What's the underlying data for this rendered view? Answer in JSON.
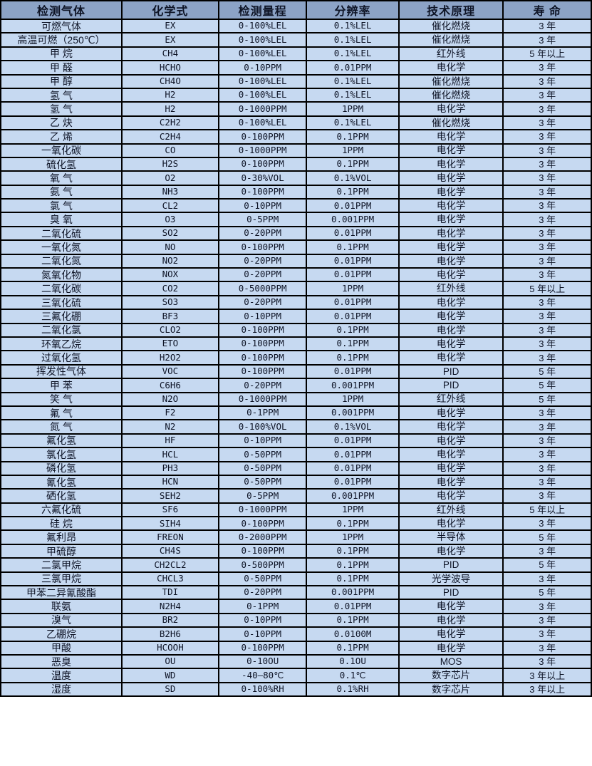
{
  "colors": {
    "header_bg": "#8CA3C6",
    "row_bg": "#C6D9F1",
    "border": "#000000",
    "text": "#0E1426"
  },
  "table": {
    "columns": [
      "检测气体",
      "化学式",
      "检测量程",
      "分辨率",
      "技术原理",
      "寿 命"
    ],
    "column_keys": [
      "gas",
      "formula",
      "range",
      "resolution",
      "principle",
      "lifespan"
    ],
    "rows": [
      [
        "可燃气体",
        "EX",
        "0-100%LEL",
        "0.1%LEL",
        "催化燃烧",
        "3 年"
      ],
      [
        "高温可燃（250℃）",
        "EX",
        "0-100%LEL",
        "0.1%LEL",
        "催化燃烧",
        "3 年"
      ],
      [
        "甲 烷",
        "CH4",
        "0-100%LEL",
        "0.1%LEL",
        "红外线",
        "5 年以上"
      ],
      [
        "甲 醛",
        "HCHO",
        "0-10PPM",
        "0.01PPM",
        "电化学",
        "3 年"
      ],
      [
        "甲 醇",
        "CH4O",
        "0-100%LEL",
        "0.1%LEL",
        "催化燃烧",
        "3 年"
      ],
      [
        "氢 气",
        "H2",
        "0-100%LEL",
        "0.1%LEL",
        "催化燃烧",
        "3 年"
      ],
      [
        "氢 气",
        "H2",
        "0-1000PPM",
        "1PPM",
        "电化学",
        "3 年"
      ],
      [
        "乙 炔",
        "C2H2",
        "0-100%LEL",
        "0.1%LEL",
        "催化燃烧",
        "3 年"
      ],
      [
        "乙 烯",
        "C2H4",
        "0-100PPM",
        "0.1PPM",
        "电化学",
        "3 年"
      ],
      [
        "一氧化碳",
        "CO",
        "0-1000PPM",
        "1PPM",
        "电化学",
        "3 年"
      ],
      [
        "硫化氢",
        "H2S",
        "0-100PPM",
        "0.1PPM",
        "电化学",
        "3 年"
      ],
      [
        "氧 气",
        "O2",
        "0-30%VOL",
        "0.1%VOL",
        "电化学",
        "3 年"
      ],
      [
        "氨 气",
        "NH3",
        "0-100PPM",
        "0.1PPM",
        "电化学",
        "3 年"
      ],
      [
        "氯 气",
        "CL2",
        "0-10PPM",
        "0.01PPM",
        "电化学",
        "3 年"
      ],
      [
        "臭 氧",
        "O3",
        "0-5PPM",
        "0.001PPM",
        "电化学",
        "3 年"
      ],
      [
        "二氧化硫",
        "SO2",
        "0-20PPM",
        "0.01PPM",
        "电化学",
        "3 年"
      ],
      [
        "一氧化氮",
        "NO",
        "0-100PPM",
        "0.1PPM",
        "电化学",
        "3 年"
      ],
      [
        "二氧化氮",
        "NO2",
        "0-20PPM",
        "0.01PPM",
        "电化学",
        "3 年"
      ],
      [
        "氮氧化物",
        "NOX",
        "0-20PPM",
        "0.01PPM",
        "电化学",
        "3 年"
      ],
      [
        "二氧化碳",
        "CO2",
        "0-5000PPM",
        "1PPM",
        "红外线",
        "5 年以上"
      ],
      [
        "三氧化硫",
        "SO3",
        "0-20PPM",
        "0.01PPM",
        "电化学",
        "3 年"
      ],
      [
        "三氟化硼",
        "BF3",
        "0-10PPM",
        "0.01PPM",
        "电化学",
        "3 年"
      ],
      [
        "二氧化氯",
        "CLO2",
        "0-100PPM",
        "0.1PPM",
        "电化学",
        "3 年"
      ],
      [
        "环氧乙烷",
        "ETO",
        "0-100PPM",
        "0.1PPM",
        "电化学",
        "3 年"
      ],
      [
        "过氧化氢",
        "H2O2",
        "0-100PPM",
        "0.1PPM",
        "电化学",
        "3 年"
      ],
      [
        "挥发性气体",
        "VOC",
        "0-100PPM",
        "0.01PPM",
        "PID",
        "5 年"
      ],
      [
        "甲 苯",
        "C6H6",
        "0-20PPM",
        "0.001PPM",
        "PID",
        "5 年"
      ],
      [
        "笑 气",
        "N2O",
        "0-1000PPM",
        "1PPM",
        "红外线",
        "5 年"
      ],
      [
        "氟 气",
        "F2",
        "0-1PPM",
        "0.001PPM",
        "电化学",
        "3 年"
      ],
      [
        "氮 气",
        "N2",
        "0-100%VOL",
        "0.1%VOL",
        "电化学",
        "3 年"
      ],
      [
        "氟化氢",
        "HF",
        "0-10PPM",
        "0.01PPM",
        "电化学",
        "3 年"
      ],
      [
        "氯化氢",
        "HCL",
        "0-50PPM",
        "0.01PPM",
        "电化学",
        "3 年"
      ],
      [
        "磷化氢",
        "PH3",
        "0-50PPM",
        "0.01PPM",
        "电化学",
        "3 年"
      ],
      [
        "氰化氢",
        "HCN",
        "0-50PPM",
        "0.01PPM",
        "电化学",
        "3 年"
      ],
      [
        "硒化氢",
        "SEH2",
        "0-5PPM",
        "0.001PPM",
        "电化学",
        "3 年"
      ],
      [
        "六氟化硫",
        "SF6",
        "0-1000PPM",
        "1PPM",
        "红外线",
        "5 年以上"
      ],
      [
        "硅 烷",
        "SIH4",
        "0-100PPM",
        "0.1PPM",
        "电化学",
        "3 年"
      ],
      [
        "氟利昂",
        "FREON",
        "0-2000PPM",
        "1PPM",
        "半导体",
        "5 年"
      ],
      [
        "甲硫醇",
        "CH4S",
        "0-100PPM",
        "0.1PPM",
        "电化学",
        "3 年"
      ],
      [
        "二氯甲烷",
        "CH2CL2",
        "0-500PPM",
        "0.1PPM",
        "PID",
        "5 年"
      ],
      [
        "三氯甲烷",
        "CHCL3",
        "0-50PPM",
        "0.1PPM",
        "光学波导",
        "3 年"
      ],
      [
        "甲苯二异氰酸酯",
        "TDI",
        "0-20PPM",
        "0.001PPM",
        "PID",
        "5 年"
      ],
      [
        "联氨",
        "N2H4",
        "0-1PPM",
        "0.01PPM",
        "电化学",
        "3 年"
      ],
      [
        "溴气",
        "BR2",
        "0-10PPM",
        "0.1PPM",
        "电化学",
        "3 年"
      ],
      [
        "乙硼烷",
        "B2H6",
        "0-10PPM",
        "0.0100M",
        "电化学",
        "3 年"
      ],
      [
        "甲酸",
        "HCOOH",
        "0-100PPM",
        "0.1PPM",
        "电化学",
        "3 年"
      ],
      [
        "恶臭",
        "OU",
        "0-10OU",
        "0.1OU",
        "MOS",
        "3 年"
      ],
      [
        "温度",
        "WD",
        "-40—80℃",
        "0.1℃",
        "数字芯片",
        "3 年以上"
      ],
      [
        "湿度",
        "SD",
        "0-100%RH",
        "0.1%RH",
        "数字芯片",
        "3 年以上"
      ]
    ]
  }
}
